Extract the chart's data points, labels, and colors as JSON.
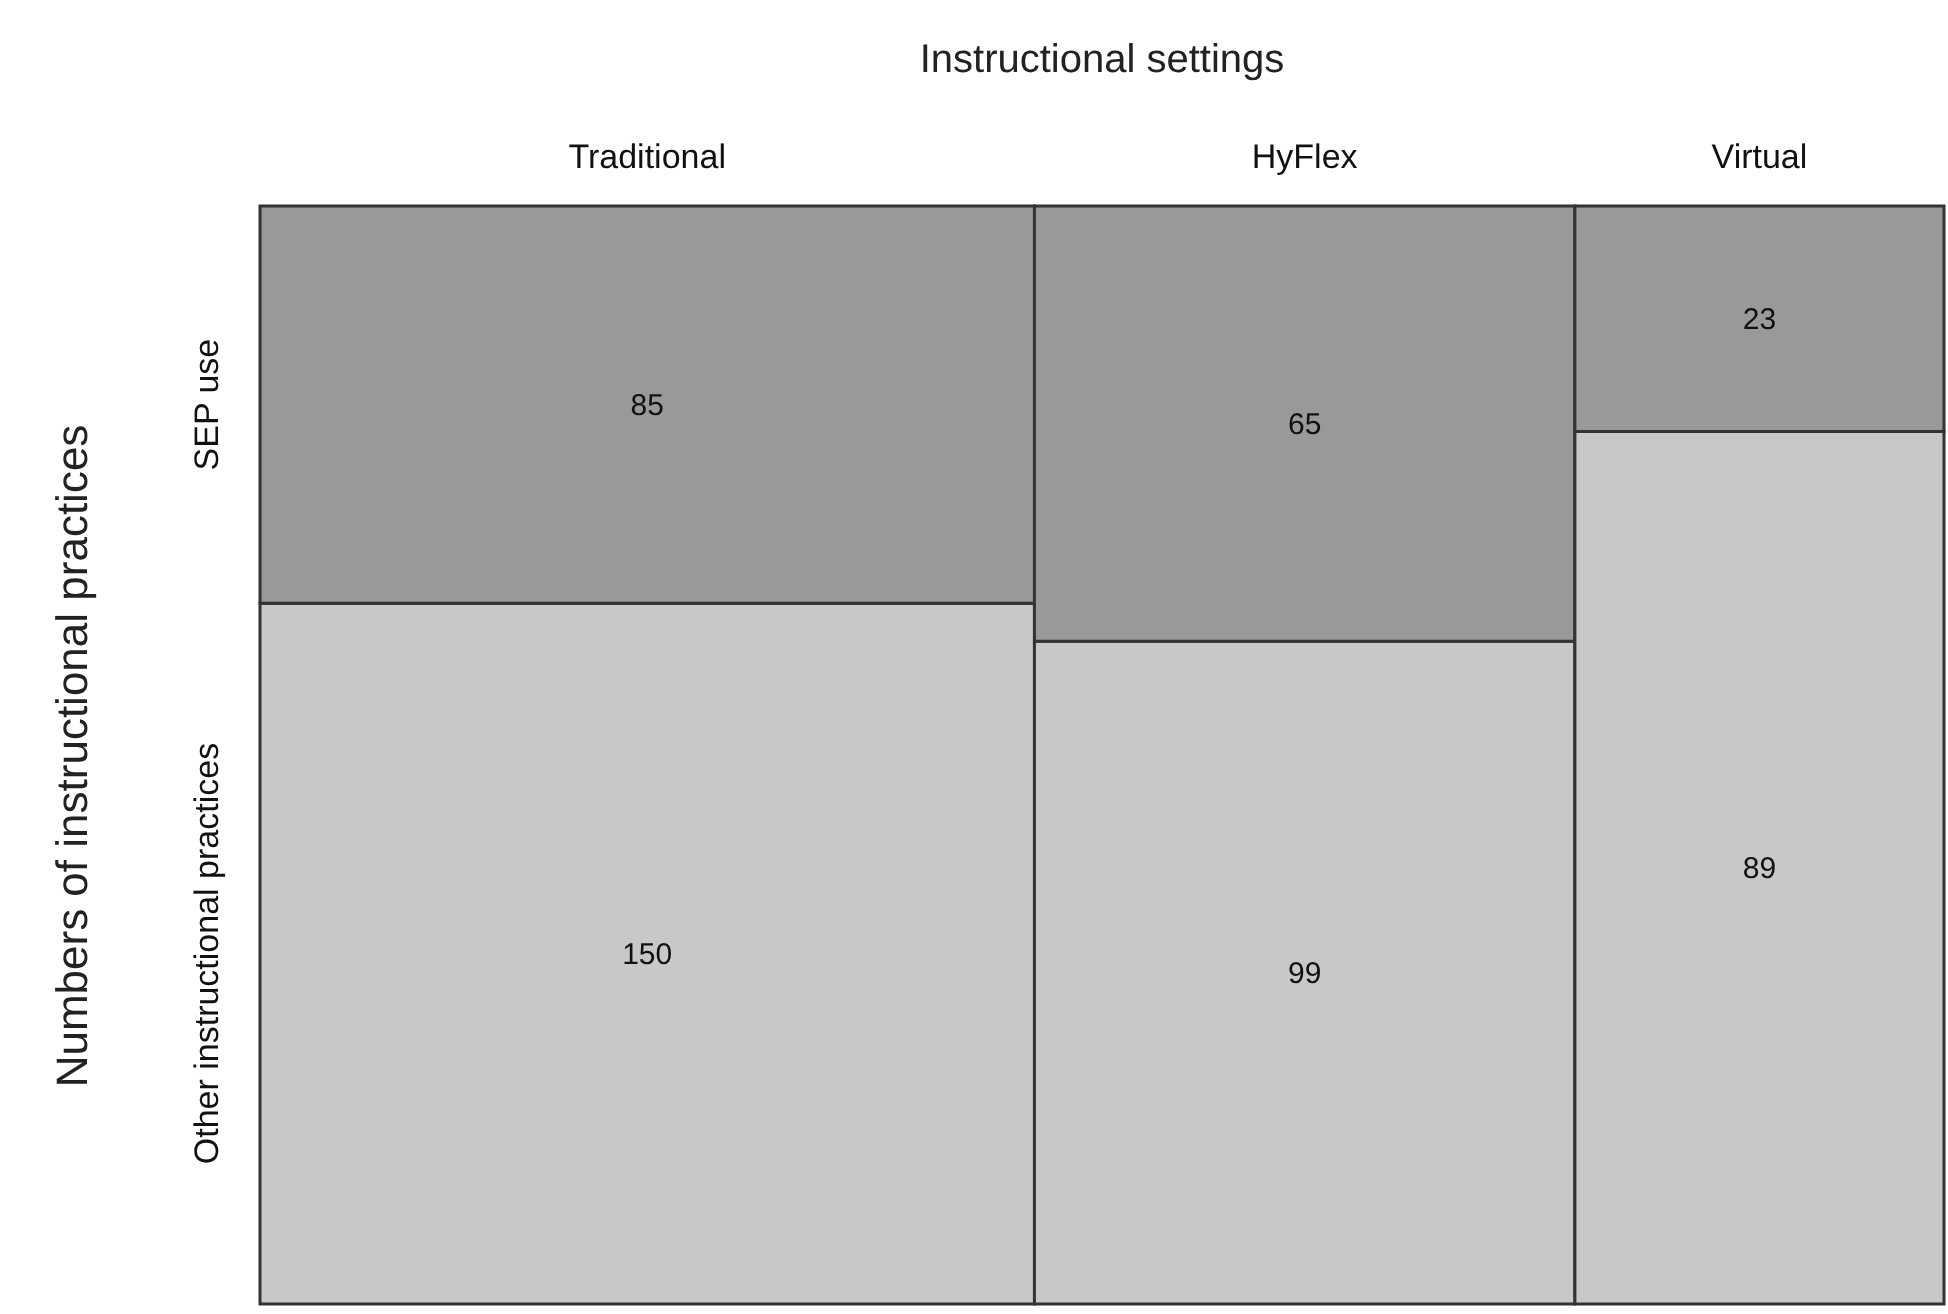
{
  "chart_data": {
    "type": "other",
    "xlabel": "Instructional settings",
    "ylabel": "Numbers of instructional practices",
    "categories": [
      "Traditional",
      "HyFlex",
      "Virtual"
    ],
    "data_labels": true,
    "series": [
      {
        "name": "Other instructional practices",
        "color": "#c8c8c8",
        "values": [
          150,
          99,
          89
        ]
      },
      {
        "name": "SEP use",
        "color": "#999999",
        "values": [
          85,
          65,
          23
        ]
      }
    ]
  }
}
